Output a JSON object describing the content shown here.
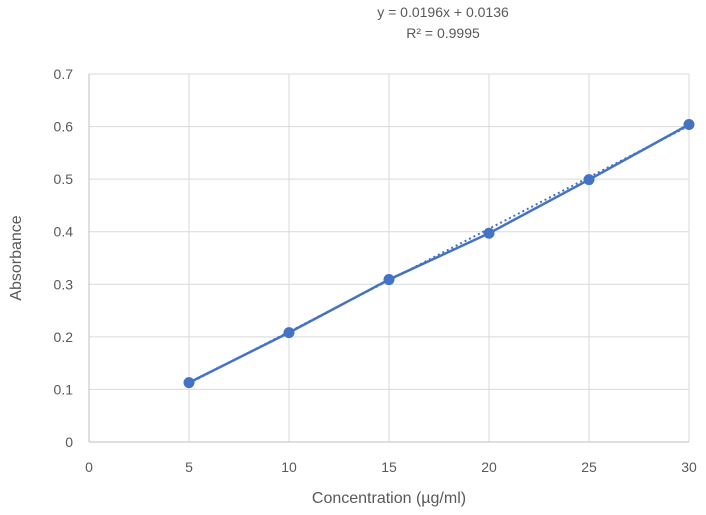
{
  "chart_data": {
    "type": "scatter",
    "title": "",
    "xlabel": "Concentration (µg/ml)",
    "ylabel": "Absorbance",
    "xlim": [
      0,
      30
    ],
    "ylim": [
      0,
      0.7
    ],
    "x_ticks": [
      0,
      5,
      10,
      15,
      20,
      25,
      30
    ],
    "y_ticks": [
      0,
      0.1,
      0.2,
      0.3,
      0.4,
      0.5,
      0.6,
      0.7
    ],
    "x_tick_labels": [
      "0",
      "5",
      "10",
      "15",
      "20",
      "25",
      "30"
    ],
    "y_tick_labels": [
      "0",
      "0.1",
      "0.2",
      "0.3",
      "0.4",
      "0.5",
      "0.6",
      "0.7"
    ],
    "grid": true,
    "legend": "none",
    "series": [
      {
        "x": [
          5,
          10,
          15,
          20,
          25,
          30
        ],
        "y": [
          0.113,
          0.208,
          0.309,
          0.397,
          0.499,
          0.604
        ],
        "color": "#4472C4",
        "markers": true,
        "connected": true
      }
    ],
    "trendline": {
      "type": "linear",
      "slope": 0.0196,
      "intercept": 0.0136,
      "style": "dotted",
      "color": "#4472C4",
      "equation_label": "y = 0.0196x + 0.0136",
      "r2_label": "R² = 0.9995"
    }
  }
}
